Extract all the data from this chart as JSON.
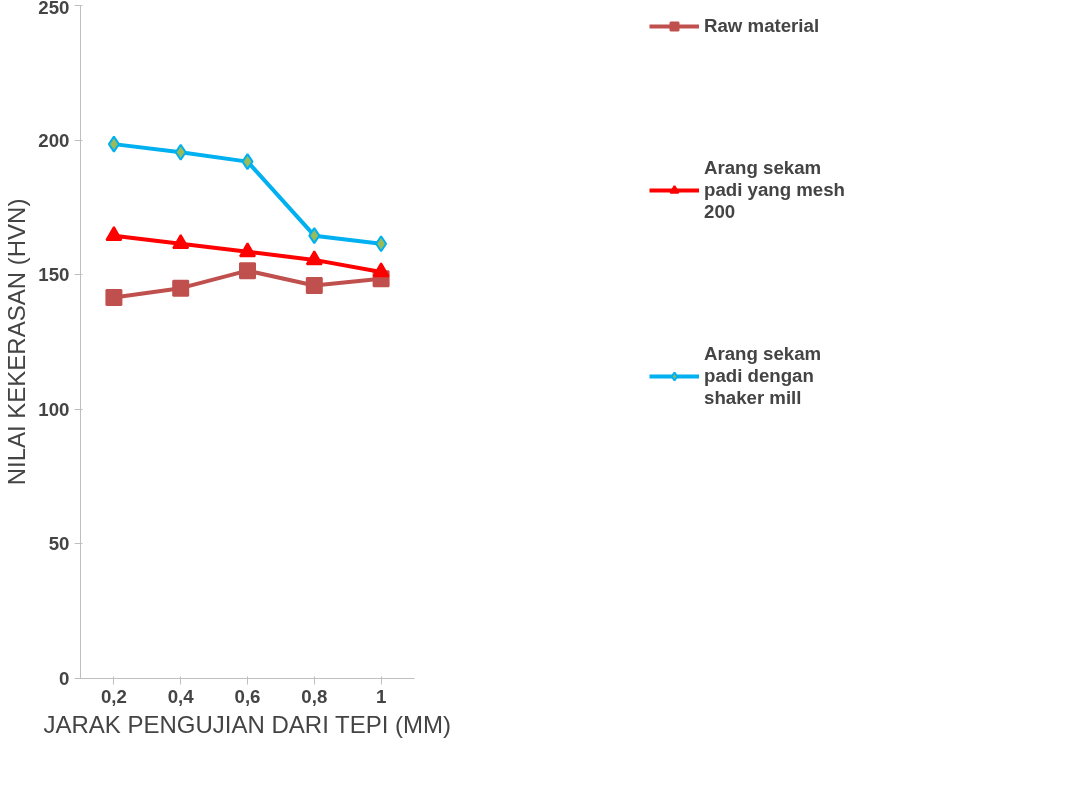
{
  "chart_data": {
    "type": "line",
    "xlabel": "JARAK PENGUJIAN DARI TEPI (MM)",
    "ylabel": "NILAI KEKERASAN (HVN)",
    "categories": [
      "0,2",
      "0,4",
      "0,6",
      "0,8",
      "1"
    ],
    "series": [
      {
        "name": "Raw material",
        "color": "#c0504d",
        "marker": "square",
        "values": [
          141.5,
          145,
          151.5,
          146,
          148.5
        ]
      },
      {
        "name": "Arang sekam padi yang mesh 200",
        "color": "#ff0000",
        "marker": "triangle",
        "values": [
          164.5,
          161.5,
          158.5,
          155.5,
          151
        ]
      },
      {
        "name": "Arang sekam padi dengan shaker mill",
        "color": "#00b0f0",
        "marker": "diamond",
        "values": [
          198.5,
          195.5,
          192,
          164.5,
          161.5
        ]
      }
    ],
    "ylim": [
      0,
      250
    ],
    "yticks": [
      0,
      50,
      100,
      150,
      200,
      250
    ],
    "grid": false,
    "legend": "right"
  }
}
